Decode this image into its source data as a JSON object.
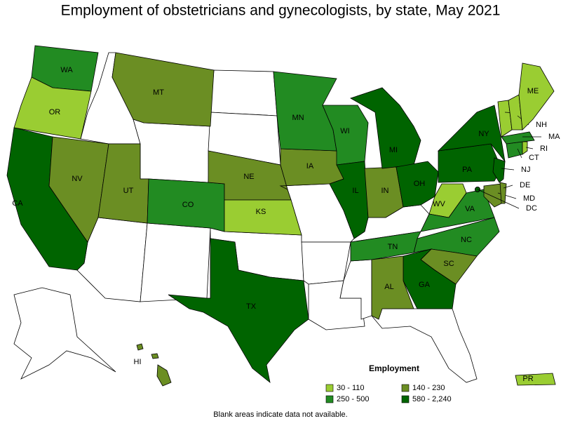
{
  "title": "Employment of obstetricians and gynecologists, by state, May 2021",
  "legend": {
    "title": "Employment",
    "items": [
      {
        "label": "30 - 110",
        "color": "#9acd32"
      },
      {
        "label": "140 - 230",
        "color": "#6b8e23"
      },
      {
        "label": "250 - 500",
        "color": "#228b22"
      },
      {
        "label": "580 - 2,240",
        "color": "#006400"
      }
    ]
  },
  "states": [
    {
      "abbr": "WA",
      "range": "250 - 500"
    },
    {
      "abbr": "OR",
      "range": "30 - 110"
    },
    {
      "abbr": "CA",
      "range": "580 - 2,240"
    },
    {
      "abbr": "NV",
      "range": "140 - 230"
    },
    {
      "abbr": "UT",
      "range": "140 - 230"
    },
    {
      "abbr": "MT",
      "range": "140 - 230"
    },
    {
      "abbr": "CO",
      "range": "250 - 500"
    },
    {
      "abbr": "NE",
      "range": "140 - 230"
    },
    {
      "abbr": "KS",
      "range": "30 - 110"
    },
    {
      "abbr": "IA",
      "range": "140 - 230"
    },
    {
      "abbr": "MN",
      "range": "250 - 500"
    },
    {
      "abbr": "WI",
      "range": "250 - 500"
    },
    {
      "abbr": "IL",
      "range": "580 - 2,240"
    },
    {
      "abbr": "IN",
      "range": "140 - 230"
    },
    {
      "abbr": "MI",
      "range": "580 - 2,240"
    },
    {
      "abbr": "OH",
      "range": "580 - 2,240"
    },
    {
      "abbr": "PA",
      "range": "580 - 2,240"
    },
    {
      "abbr": "NY",
      "range": "580 - 2,240"
    },
    {
      "abbr": "WV",
      "range": "30 - 110"
    },
    {
      "abbr": "VA",
      "range": "250 - 500"
    },
    {
      "abbr": "NC",
      "range": "250 - 500"
    },
    {
      "abbr": "TN",
      "range": "250 - 500"
    },
    {
      "abbr": "SC",
      "range": "140 - 230"
    },
    {
      "abbr": "GA",
      "range": "580 - 2,240"
    },
    {
      "abbr": "AL",
      "range": "140 - 230"
    },
    {
      "abbr": "TX",
      "range": "580 - 2,240"
    },
    {
      "abbr": "MD",
      "range": "140 - 230"
    },
    {
      "abbr": "DE",
      "range": "140 - 230"
    },
    {
      "abbr": "NJ",
      "range": "580 - 2,240"
    },
    {
      "abbr": "CT",
      "range": "250 - 500"
    },
    {
      "abbr": "RI",
      "range": "30 - 110"
    },
    {
      "abbr": "MA",
      "range": "250 - 500"
    },
    {
      "abbr": "VT",
      "range": "30 - 110"
    },
    {
      "abbr": "NH",
      "range": "30 - 110"
    },
    {
      "abbr": "ME",
      "range": "30 - 110"
    },
    {
      "abbr": "HI",
      "range": "140 - 230"
    },
    {
      "abbr": "PR",
      "range": "30 - 110"
    },
    {
      "abbr": "DC",
      "range": "580 - 2,240"
    }
  ],
  "note": "Blank areas indicate data not available."
}
